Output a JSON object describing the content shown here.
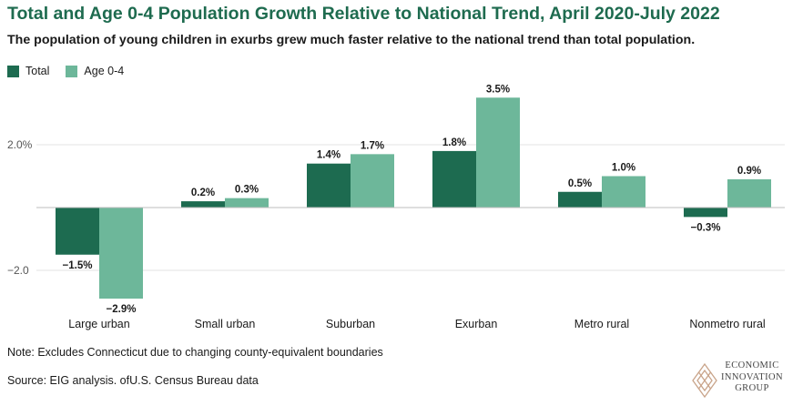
{
  "chart_data": {
    "type": "bar",
    "title": "Total and Age 0-4 Population Growth Relative to National Trend, April 2020-July 2022",
    "subtitle": "The population of young children in exurbs grew much faster relative to the national trend than total population.",
    "categories": [
      "Large urban",
      "Small urban",
      "Suburban",
      "Exurban",
      "Metro rural",
      "Nonmetro rural"
    ],
    "series": [
      {
        "name": "Total",
        "color": "#1d6b50",
        "values": [
          -1.5,
          0.2,
          1.4,
          1.8,
          0.5,
          -0.3
        ]
      },
      {
        "name": "Age 0-4",
        "color": "#6db79a",
        "values": [
          -2.9,
          0.3,
          1.7,
          3.5,
          1.0,
          0.9
        ]
      }
    ],
    "data_labels": [
      [
        "−1.5%",
        "0.2%",
        "1.4%",
        "1.8%",
        "0.5%",
        "−0.3%"
      ],
      [
        "−2.9%",
        "0.3%",
        "1.7%",
        "3.5%",
        "1.0%",
        "0.9%"
      ]
    ],
    "y_ticks": [
      2.0,
      -2.0
    ],
    "y_tick_labels": [
      "2.0%",
      "−2.0"
    ],
    "ylim": [
      -3.0,
      3.8
    ],
    "xlabel": "",
    "ylabel": "",
    "grid": true,
    "legend": "top-left"
  },
  "footer": {
    "note": "Note: Excludes Connecticut due to changing county-equivalent boundaries",
    "source": "Source: EIG analysis. ofU.S. Census Bureau data"
  },
  "logo": {
    "lines": [
      "ECONOMIC",
      "INNOVATION",
      "GROUP"
    ],
    "icon": "eig-diamond-logo-icon"
  }
}
